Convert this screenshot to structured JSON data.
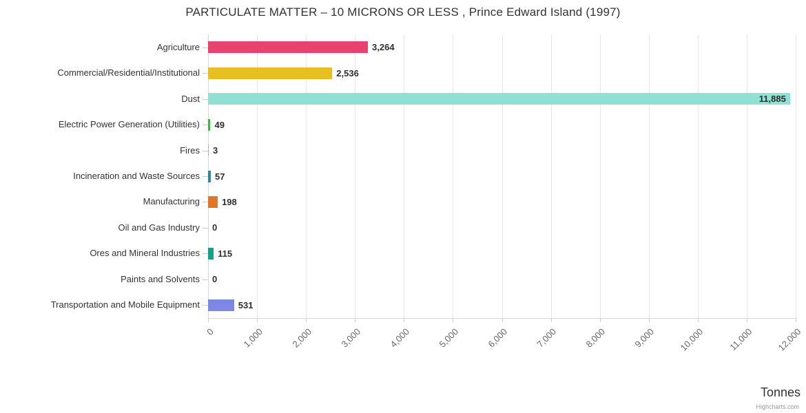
{
  "credit": "Highcharts.com",
  "chart_data": {
    "type": "bar",
    "orientation": "horizontal",
    "title": "PARTICULATE MATTER – 10 MICRONS OR LESS , Prince Edward Island (1997)",
    "xlabel": "Tonnes",
    "ylabel": "",
    "categories": [
      "Agriculture",
      "Commercial/Residential/Institutional",
      "Dust",
      "Electric Power Generation (Utilities)",
      "Fires",
      "Incineration and Waste Sources",
      "Manufacturing",
      "Oil and Gas Industry",
      "Ores and Mineral Industries",
      "Paints and Solvents",
      "Transportation and Mobile Equipment"
    ],
    "values": [
      3264,
      2536,
      11885,
      49,
      3,
      57,
      198,
      0,
      115,
      0,
      531
    ],
    "value_labels": [
      "3,264",
      "2,536",
      "11,885",
      "49",
      "3",
      "57",
      "198",
      "0",
      "115",
      "0",
      "531"
    ],
    "bar_colors": [
      "#e8426e",
      "#e6c020",
      "#90e0d3",
      "#4caf50",
      "#b0b0b0",
      "#2b8a99",
      "#e0762a",
      "#b0b0b0",
      "#16a085",
      "#b0b0b0",
      "#7d87e6"
    ],
    "xlim": [
      0,
      12000
    ],
    "x_ticks": [
      0,
      1000,
      2000,
      3000,
      4000,
      5000,
      6000,
      7000,
      8000,
      9000,
      10000,
      11000,
      12000
    ],
    "x_tick_labels": [
      "0",
      "1,000",
      "2,000",
      "3,000",
      "4,000",
      "5,000",
      "6,000",
      "7,000",
      "8,000",
      "9,000",
      "10,000",
      "11,000",
      "12,000"
    ],
    "grid": true,
    "legend": "none"
  }
}
